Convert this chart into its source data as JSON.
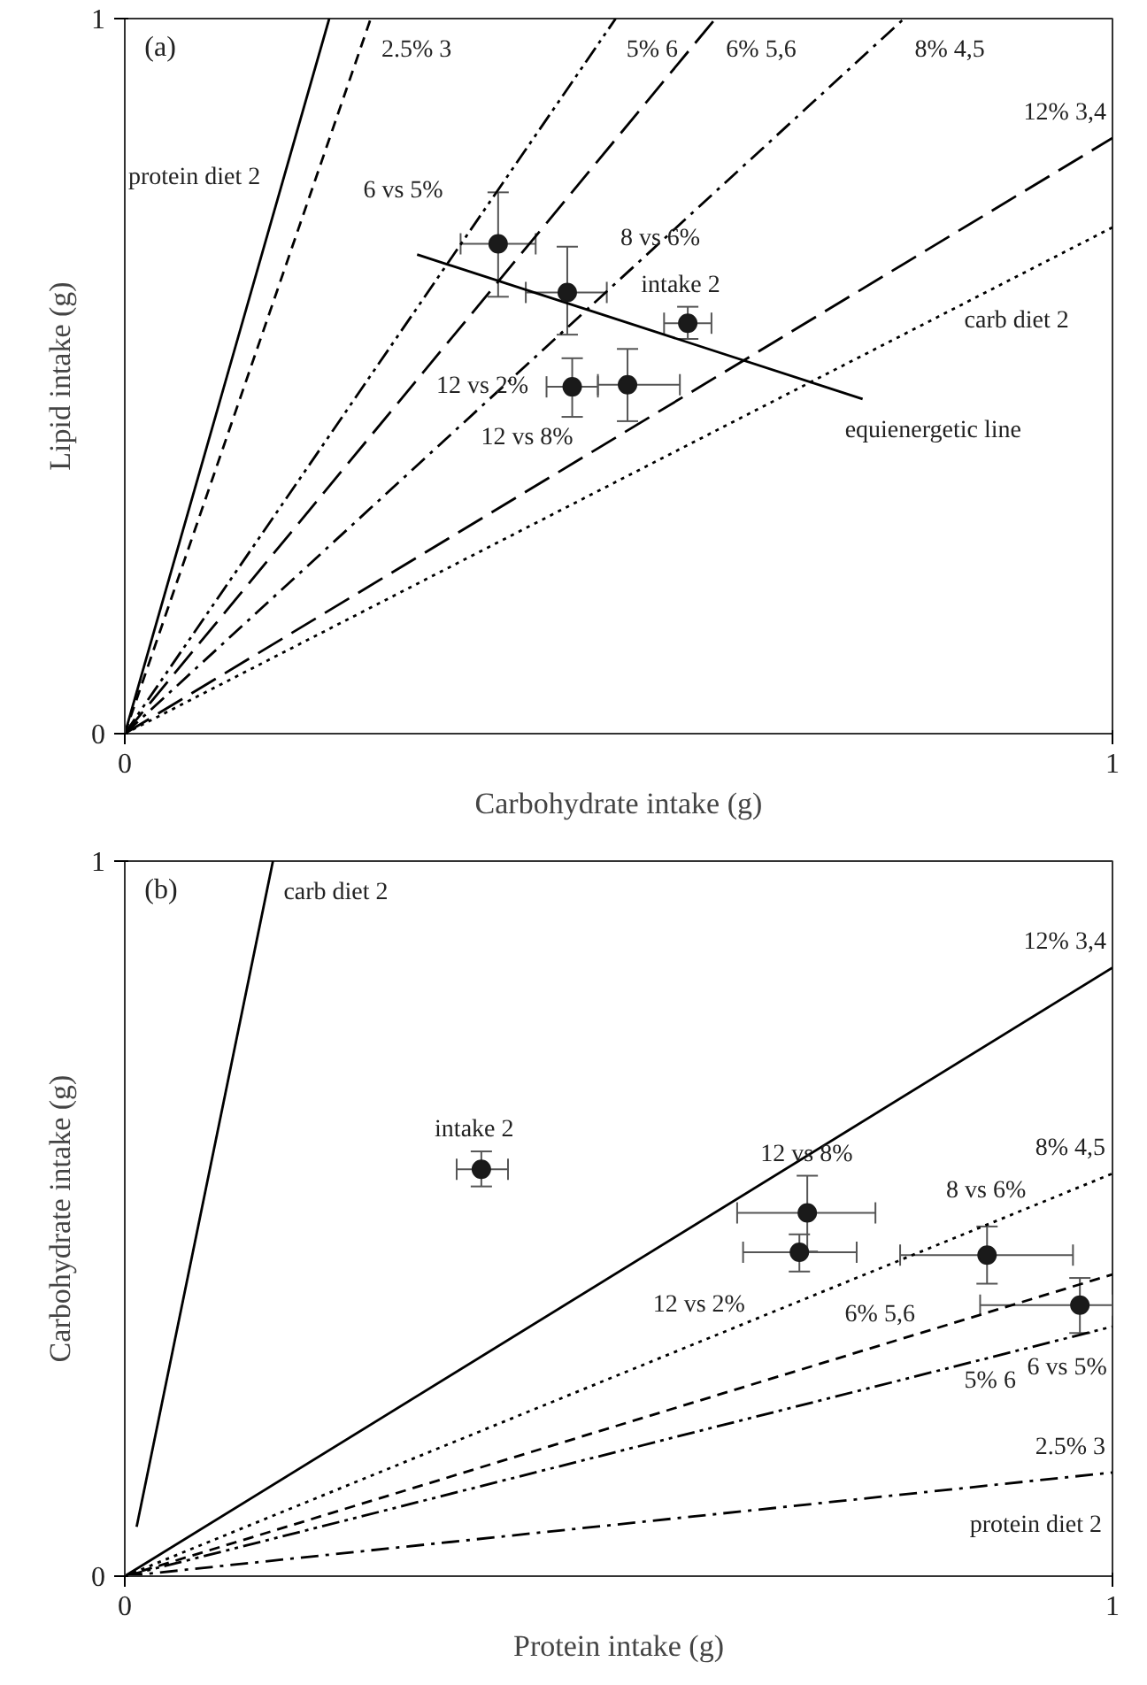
{
  "chart_data": [
    {
      "type": "scatter",
      "title": "(a)",
      "xlabel": "Carbohydrate intake (g)",
      "ylabel": "Lipid intake (g)",
      "xlim": [
        0,
        1
      ],
      "ylim": [
        0,
        1
      ],
      "xticks": [
        0,
        1
      ],
      "yticks": [
        0,
        1
      ],
      "series": [
        {
          "type": "line",
          "name": "protein diet 2",
          "color": "#000000",
          "line_style": "solid",
          "marker": "none",
          "x": [
            0,
            0.207
          ],
          "values": [
            0,
            1
          ]
        },
        {
          "type": "line",
          "name": "2.5% 3",
          "color": "#000000",
          "line_style": "dashed",
          "marker": "none",
          "x": [
            0,
            0.249
          ],
          "values": [
            0,
            1
          ]
        },
        {
          "type": "line",
          "name": "5% 6",
          "color": "#000000",
          "line_style": "dashdotdot",
          "marker": "none",
          "x": [
            0,
            0.497
          ],
          "values": [
            0,
            1
          ]
        },
        {
          "type": "line",
          "name": "6% 5,6",
          "color": "#000000",
          "line_style": "longdash",
          "marker": "none",
          "x": [
            0,
            0.598
          ],
          "values": [
            0,
            1
          ]
        },
        {
          "type": "line",
          "name": "8% 4,5",
          "color": "#000000",
          "line_style": "dashdot",
          "marker": "none",
          "x": [
            0,
            0.789
          ],
          "values": [
            0,
            1
          ]
        },
        {
          "type": "line",
          "name": "12% 3,4",
          "color": "#000000",
          "line_style": "longdash",
          "marker": "none",
          "x": [
            0,
            1
          ],
          "values": [
            0,
            0.833
          ]
        },
        {
          "type": "line",
          "name": "carb diet 2",
          "color": "#000000",
          "line_style": "dotted",
          "marker": "none",
          "x": [
            0,
            1
          ],
          "values": [
            0,
            0.708
          ]
        },
        {
          "type": "line",
          "name": "equienergetic line",
          "color": "#000000",
          "line_style": "solid",
          "marker": "none",
          "x": [
            0.296,
            0.747
          ],
          "values": [
            0.67,
            0.468
          ]
        },
        {
          "type": "scatter",
          "color": "#1a1a1a",
          "marker": "circle",
          "x": [
            0.378,
            0.448,
            0.57,
            0.453,
            0.509
          ],
          "values": [
            0.685,
            0.617,
            0.574,
            0.485,
            0.488
          ],
          "errors": [
            [
              0.611,
              0.757
            ],
            [
              0.558,
              0.681
            ],
            [
              0.552,
              0.597
            ],
            [
              0.443,
              0.525
            ],
            [
              0.437,
              0.538
            ]
          ],
          "xerrors": [
            [
              0.34,
              0.416
            ],
            [
              0.406,
              0.488
            ],
            [
              0.546,
              0.594
            ],
            [
              0.427,
              0.479
            ],
            [
              0.479,
              0.562
            ]
          ]
        }
      ],
      "annotations": [
        {
          "text": "6 vs 5%",
          "x": 0.378,
          "y": 0.685
        },
        {
          "text": "8 vs 6%",
          "x": 0.448,
          "y": 0.617
        },
        {
          "text": "intake 2",
          "x": 0.57,
          "y": 0.574
        },
        {
          "text": "12 vs 8%",
          "x": 0.509,
          "y": 0.488
        },
        {
          "text": "12 vs 2%",
          "x": 0.453,
          "y": 0.485
        }
      ]
    },
    {
      "type": "scatter",
      "title": "(b)",
      "xlabel": "Protein intake (g)",
      "ylabel": "Carbohydrate intake (g)",
      "xlim": [
        0,
        1
      ],
      "ylim": [
        0,
        1
      ],
      "xticks": [
        0,
        1
      ],
      "yticks": [
        0,
        1
      ],
      "series": [
        {
          "type": "line",
          "name": "carb diet 2",
          "color": "#000000",
          "line_style": "solid",
          "marker": "none",
          "x": [
            0.012,
            0.15
          ],
          "values": [
            0.069,
            1
          ]
        },
        {
          "type": "line",
          "name": "12% 3,4",
          "color": "#000000",
          "line_style": "solid",
          "marker": "none",
          "x": [
            0,
            1
          ],
          "values": [
            0,
            0.851
          ]
        },
        {
          "type": "line",
          "name": "8% 4,5",
          "color": "#000000",
          "line_style": "dotted",
          "marker": "none",
          "x": [
            0,
            1
          ],
          "values": [
            0,
            0.563
          ]
        },
        {
          "type": "line",
          "name": "6% 5,6",
          "color": "#000000",
          "line_style": "dashed",
          "marker": "none",
          "x": [
            0,
            1
          ],
          "values": [
            0,
            0.422
          ]
        },
        {
          "type": "line",
          "name": "5% 6",
          "color": "#000000",
          "line_style": "dashdotdot",
          "marker": "none",
          "x": [
            0,
            1
          ],
          "values": [
            0,
            0.349
          ]
        },
        {
          "type": "line",
          "name": "2.5% 3",
          "color": "#000000",
          "line_style": "dashdot",
          "marker": "none",
          "x": [
            0,
            1
          ],
          "values": [
            0,
            0.145
          ]
        },
        {
          "type": "scatter",
          "color": "#1a1a1a",
          "marker": "circle",
          "x": [
            0.361,
            0.691,
            0.683,
            0.873,
            0.967
          ],
          "values": [
            0.569,
            0.508,
            0.453,
            0.449,
            0.379
          ],
          "errors": [
            [
              0.545,
              0.594
            ],
            [
              0.454,
              0.56
            ],
            [
              0.426,
              0.478
            ],
            [
              0.409,
              0.489
            ],
            [
              0.34,
              0.417
            ]
          ],
          "xerrors": [
            [
              0.336,
              0.388
            ],
            [
              0.62,
              0.76
            ],
            [
              0.626,
              0.741
            ],
            [
              0.785,
              0.96
            ],
            [
              0.866,
              1.0
            ]
          ]
        }
      ],
      "annotations": [
        {
          "text": "intake 2",
          "x": 0.361,
          "y": 0.569
        },
        {
          "text": "12 vs 8%",
          "x": 0.691,
          "y": 0.508
        },
        {
          "text": "12 vs 2%",
          "x": 0.683,
          "y": 0.453
        },
        {
          "text": "8 vs 6%",
          "x": 0.873,
          "y": 0.449
        },
        {
          "text": "6 vs 5%",
          "x": 0.967,
          "y": 0.379
        },
        "protein diet 2"
      ]
    }
  ]
}
